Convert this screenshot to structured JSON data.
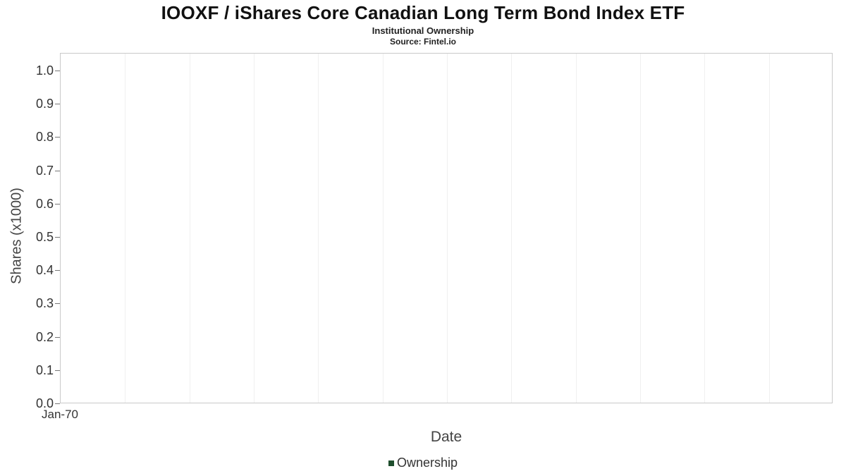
{
  "chart": {
    "title": "IOOXF / iShares Core Canadian Long Term Bond Index ETF",
    "subtitle": "Institutional Ownership",
    "source": "Source: Fintel.io",
    "ylabel": "Shares (x1000)",
    "xlabel": "Date",
    "legend": {
      "label": "Ownership",
      "color": "#1f4e2d"
    }
  },
  "chart_data": {
    "type": "line",
    "title": "IOOXF / iShares Core Canadian Long Term Bond Index ETF",
    "subtitle": "Institutional Ownership",
    "source": "Source: Fintel.io",
    "xlabel": "Date",
    "ylabel": "Shares (x1000)",
    "x_ticks": [
      "Jan-70"
    ],
    "y_ticks": [
      "0.0",
      "0.1",
      "0.2",
      "0.3",
      "0.4",
      "0.5",
      "0.6",
      "0.7",
      "0.8",
      "0.9",
      "1.0"
    ],
    "ylim": [
      0.0,
      1.05
    ],
    "grid": "faint-vertical",
    "legend_position": "bottom-center",
    "series": [
      {
        "name": "Ownership",
        "color": "#1f4e2d",
        "x": [],
        "values": []
      }
    ],
    "notes": "empty plot area - no data points rendered"
  }
}
